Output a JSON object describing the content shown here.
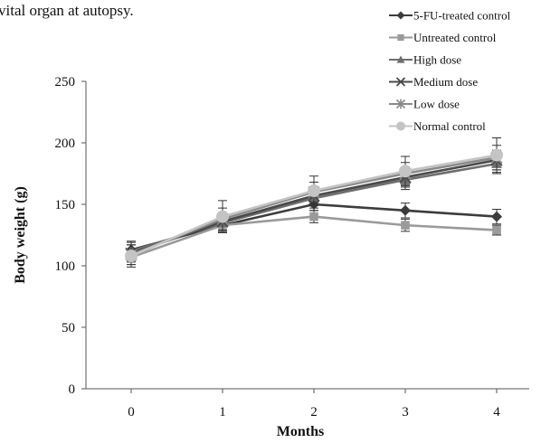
{
  "caption_fragment": "vital organ at autopsy.",
  "chart_data": {
    "type": "line",
    "title": "",
    "xlabel": "Months",
    "ylabel": "Body weight (g)",
    "x": [
      0,
      1,
      2,
      3,
      4
    ],
    "x_ticks": [
      "0",
      "1",
      "2",
      "3",
      "4"
    ],
    "ylim": [
      0,
      250
    ],
    "y_ticks": [
      "0",
      "50",
      "100",
      "150",
      "200",
      "250"
    ],
    "grid": false,
    "legend_position": "top-right",
    "series": [
      {
        "name": "5-FU-treated control",
        "marker": "diamond",
        "color": "#3c3c3c",
        "values": [
          113,
          133,
          150,
          145,
          140
        ],
        "errors": [
          6,
          6,
          5,
          6,
          6
        ]
      },
      {
        "name": "Untreated control",
        "marker": "square",
        "color": "#9a9a9a",
        "values": [
          107,
          133,
          140,
          133,
          129
        ],
        "errors": [
          6,
          5,
          5,
          5,
          4
        ]
      },
      {
        "name": "High dose",
        "marker": "triangle",
        "color": "#6e6e6e",
        "values": [
          112,
          135,
          155,
          170,
          183
        ],
        "errors": [
          8,
          8,
          8,
          8,
          8
        ]
      },
      {
        "name": "Medium dose",
        "marker": "x",
        "color": "#4a4a4a",
        "values": [
          110,
          136,
          157,
          172,
          186
        ],
        "errors": [
          7,
          7,
          7,
          8,
          8
        ]
      },
      {
        "name": "Low dose",
        "marker": "asterisk",
        "color": "#8a8a8a",
        "values": [
          109,
          138,
          160,
          175,
          188
        ],
        "errors": [
          8,
          9,
          8,
          9,
          10
        ]
      },
      {
        "name": "Normal control",
        "marker": "circle",
        "color": "#c4c4c4",
        "values": [
          108,
          140,
          161,
          177,
          190
        ],
        "errors": [
          9,
          13,
          12,
          12,
          14
        ]
      }
    ]
  }
}
